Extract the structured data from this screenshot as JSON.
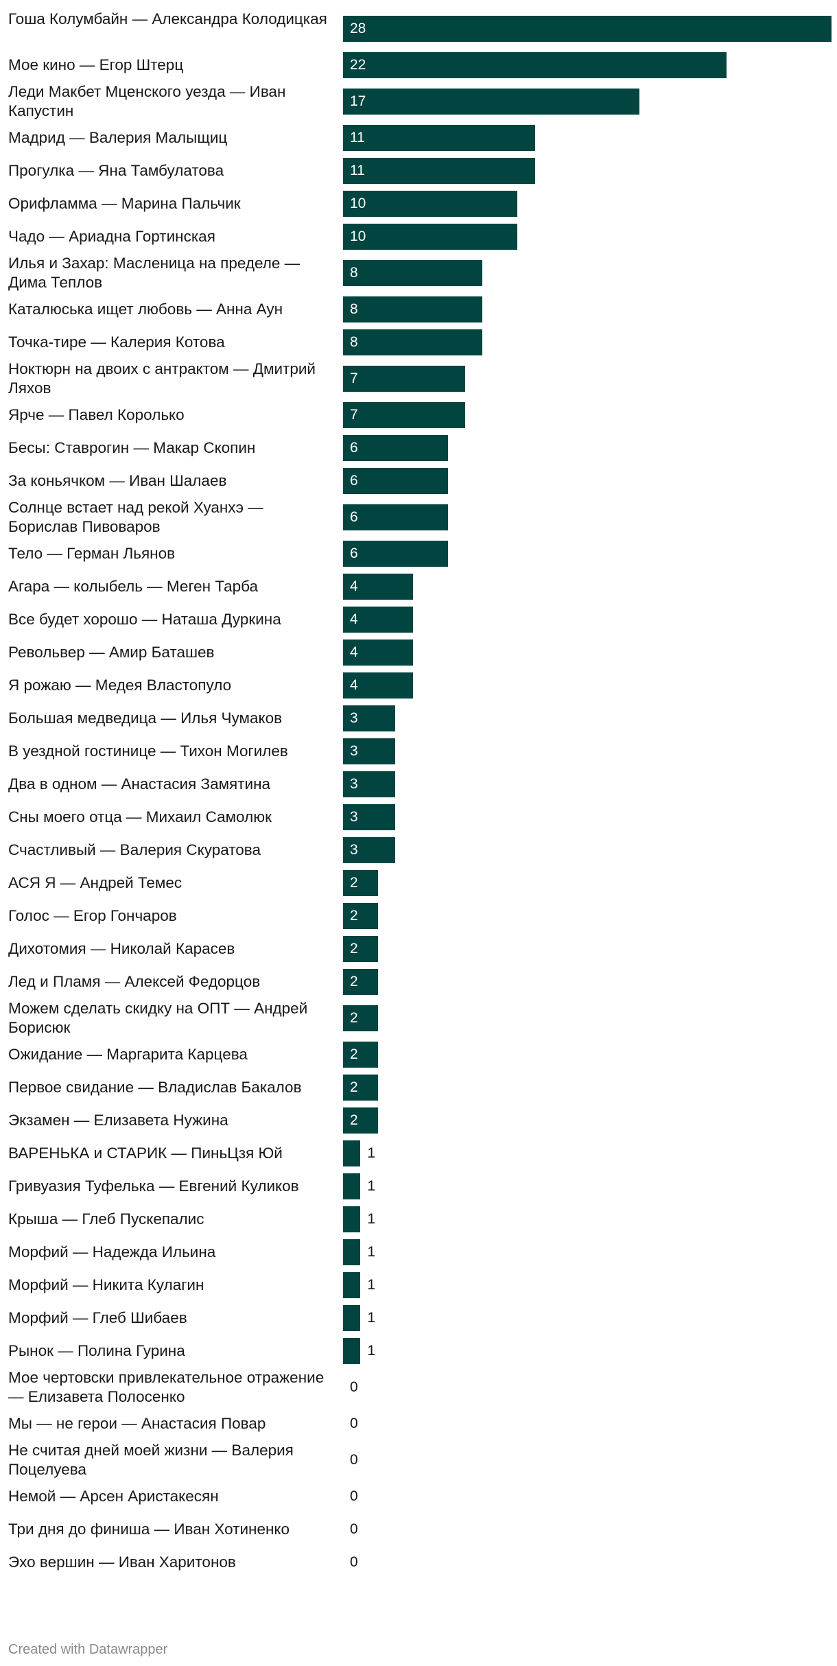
{
  "chart_data": {
    "type": "bar",
    "orientation": "horizontal",
    "categories": [
      "Гоша Колумбайн — Александра Колодицкая",
      "Мое кино — Егор Штерц",
      "Леди Макбет Мценского уезда — Иван Капустин",
      "Мадрид — Валерия Малыщиц",
      "Прогулка — Яна Тамбулатова",
      "Орифламма — Марина Пальчик",
      "Чадо — Ариадна Гортинская",
      "Илья и Захар: Масленица на пределе — Дима Теплов",
      "Каталюська ищет любовь — Анна Аун",
      "Точка-тире — Калерия Котова",
      "Ноктюрн на двоих с антрактом — Дмитрий Ляхов",
      "Ярче — Павел Королько",
      "Бесы: Ставрогин — Макар Скопин",
      "За коньячком — Иван Шалаев",
      "Солнце встает над рекой Хуанхэ — Борислав Пивоваров",
      "Тело — Герман Льянов",
      "Агара — колыбель — Меген Тарба",
      "Все будет хорошо — Наташа Дуркина",
      "Револьвер — Амир Баташев",
      "Я рожаю — Медея Властопуло",
      "Большая медведица — Илья Чумаков",
      "В уездной гостинице — Тихон Могилев",
      "Два в одном — Анастасия Замятина",
      "Сны моего отца — Михаил Самолюк",
      "Счастливый — Валерия Скуратова",
      "АСЯ Я — Андрей Темес",
      "Голос — Егор Гончаров",
      "Дихотомия — Николай Карасев",
      "Лед и Пламя — Алексей Федорцов",
      "Можем сделать скидку на ОПТ — Андрей Борисюк",
      "Ожидание — Маргарита Карцева",
      "Первое свидание — Владислав Бакалов",
      "Экзамен — Елизавета Нужина",
      "ВАРЕНЬКА и СТАРИК — ПиньЦзя Юй",
      "Гривуазия Туфелька — Евгений Куликов",
      "Крыша — Глеб Пускепалис",
      "Морфий — Надежда Ильина",
      "Морфий — Никита Кулагин",
      "Морфий — Глеб Шибаев",
      "Рынок — Полина Гурина",
      "Мое чертовски привлекательное отражение — Елизавета Полосенко",
      "Мы — не герои — Анастасия Повар",
      "Не считая дней моей жизни — Валерия Поцелуева",
      "Немой — Арсен Аристакесян",
      "Три дня до финиша — Иван Хотиненко",
      "Эхо вершин — Иван Харитонов"
    ],
    "values": [
      28,
      22,
      17,
      11,
      11,
      10,
      10,
      8,
      8,
      8,
      7,
      7,
      6,
      6,
      6,
      6,
      4,
      4,
      4,
      4,
      3,
      3,
      3,
      3,
      3,
      2,
      2,
      2,
      2,
      2,
      2,
      2,
      2,
      1,
      1,
      1,
      1,
      1,
      1,
      1,
      0,
      0,
      0,
      0,
      0,
      0
    ],
    "xlim": [
      0,
      28
    ],
    "grid": false,
    "legend": "none",
    "bar_color": "#02443f",
    "title": "",
    "xlabel": "",
    "ylabel": ""
  },
  "credit": "Created with Datawrapper"
}
